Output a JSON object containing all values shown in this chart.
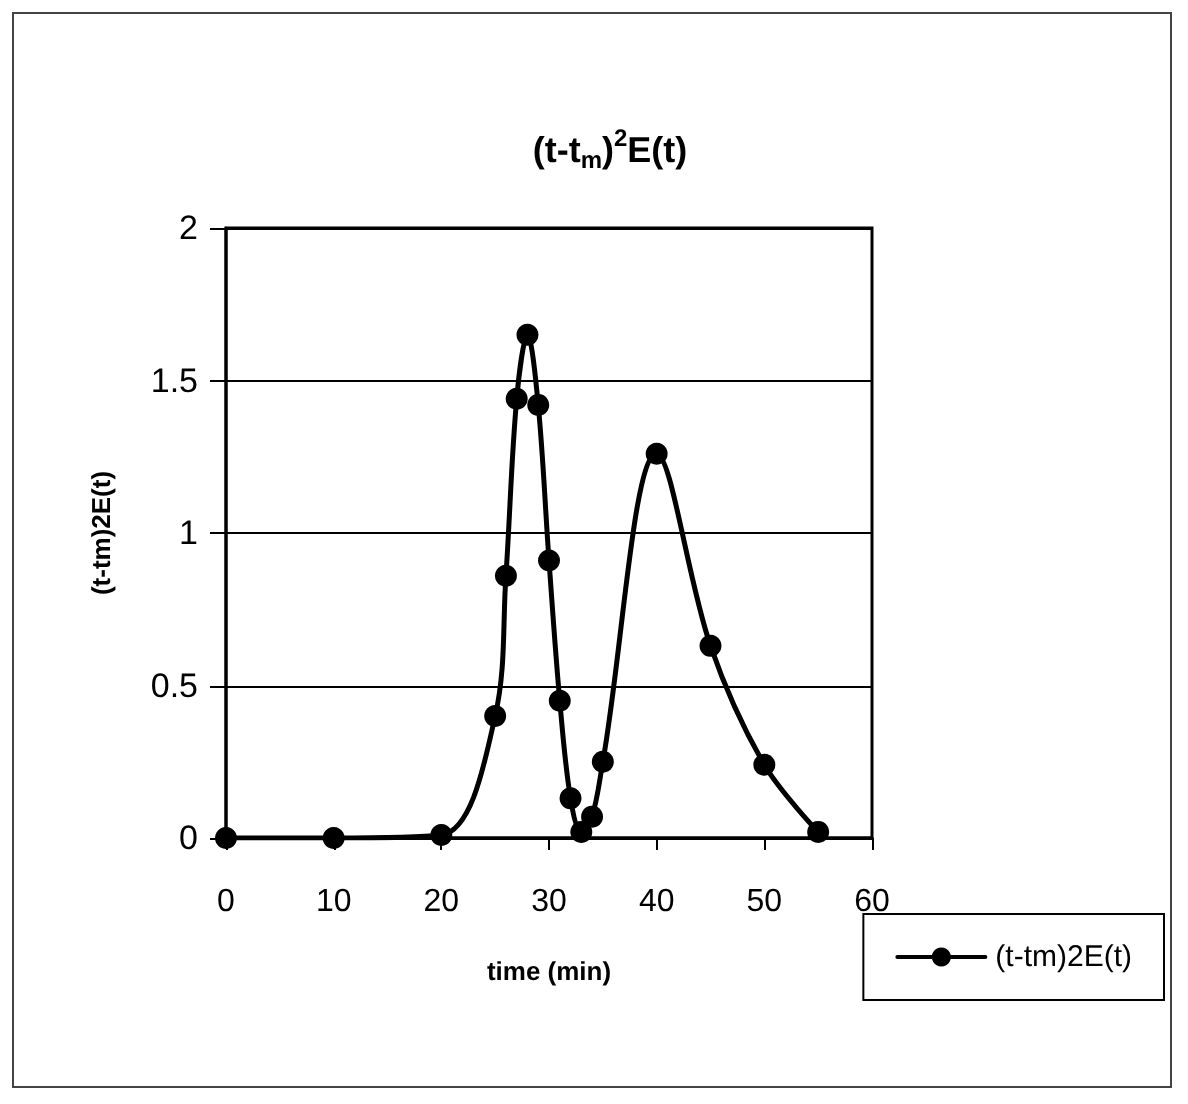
{
  "chart_data": {
    "type": "line",
    "title": "(t-t$_{m}$)$^{2}$E(t)",
    "xlabel": "time (min)",
    "ylabel": "(t-tm)2E(t)",
    "x": [
      0,
      10,
      20,
      25,
      26,
      27,
      28,
      29,
      30,
      31,
      32,
      33,
      34,
      35,
      40,
      45,
      50,
      55
    ],
    "series": [
      {
        "name": "(t-tm)2E(t)",
        "color": "#000000",
        "values": [
          0,
          0,
          0.01,
          0.4,
          0.86,
          1.44,
          1.65,
          1.42,
          0.91,
          0.45,
          0.13,
          0.02,
          0.07,
          0.25,
          1.26,
          0.63,
          0.24,
          0.02
        ]
      }
    ],
    "xlim": [
      0,
      60
    ],
    "xticks": [
      0,
      10,
      20,
      30,
      40,
      50,
      60
    ],
    "ylim": [
      0,
      2
    ],
    "yticks": [
      0,
      0.5,
      1,
      1.5,
      2
    ],
    "grid": "y",
    "legend": "bottom right",
    "marker": "circle",
    "line_style": "solid"
  }
}
